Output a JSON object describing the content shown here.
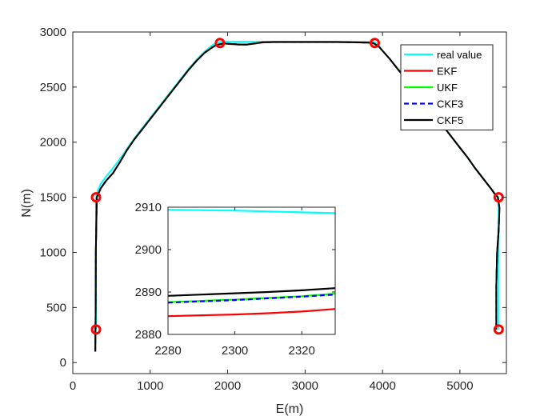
{
  "chart_data": {
    "type": "line",
    "xlabel": "E(m)",
    "ylabel": "N(m)",
    "xlim": [
      0,
      5600
    ],
    "ylim": [
      -100,
      3000
    ],
    "xticks": [
      0,
      1000,
      2000,
      3000,
      4000,
      5000
    ],
    "yticks": [
      0,
      500,
      1000,
      1500,
      2000,
      2500,
      3000
    ],
    "grid": false,
    "legend_position": "top-right",
    "series": [
      {
        "name": "real value",
        "color": "#00FFFF",
        "x": [
          300,
          300,
          300,
          320,
          360,
          420,
          500,
          600,
          700,
          800,
          900,
          1000,
          1100,
          1200,
          1300,
          1400,
          1500,
          1600,
          1700,
          1800,
          1850,
          1900,
          2000,
          2200,
          2400,
          2600,
          2800,
          3000,
          3200,
          3400,
          3600,
          3800,
          3900,
          3950,
          4000,
          4100,
          4200,
          4300,
          4400,
          4500,
          4600,
          4700,
          4800,
          4900,
          5000,
          5100,
          5200,
          5300,
          5400,
          5450,
          5480,
          5500,
          5500,
          5500
        ],
        "y": [
          300,
          1000,
          1500,
          1560,
          1620,
          1680,
          1750,
          1840,
          1940,
          2040,
          2130,
          2220,
          2310,
          2400,
          2490,
          2580,
          2670,
          2750,
          2820,
          2880,
          2900,
          2910,
          2912,
          2912,
          2911,
          2911,
          2911,
          2911,
          2911,
          2911,
          2910,
          2910,
          2908,
          2880,
          2830,
          2750,
          2660,
          2580,
          2490,
          2400,
          2310,
          2220,
          2130,
          2040,
          1950,
          1860,
          1760,
          1670,
          1580,
          1530,
          1500,
          1450,
          900,
          300
        ]
      },
      {
        "name": "EKF",
        "color": "#FF0000",
        "x": [
          290,
          295,
          298,
          310,
          360,
          430,
          520,
          610,
          700,
          800,
          900,
          1000,
          1100,
          1200,
          1300,
          1400,
          1500,
          1600,
          1700,
          1800,
          1850,
          1880,
          1950,
          2050,
          2150,
          2250,
          2350,
          2450,
          2600,
          2800,
          3000,
          3200,
          3400,
          3600,
          3800,
          3880,
          3950,
          4000,
          4100,
          4200,
          4300,
          4400,
          4500,
          4600,
          4700,
          4800,
          4900,
          5000,
          5100,
          5200,
          5300,
          5400,
          5450,
          5490,
          5510,
          5500,
          5480,
          5470,
          5470
        ],
        "y": [
          100,
          500,
          1000,
          1500,
          1580,
          1650,
          1720,
          1820,
          1930,
          2030,
          2120,
          2210,
          2300,
          2390,
          2480,
          2570,
          2660,
          2740,
          2810,
          2860,
          2880,
          2885,
          2895,
          2890,
          2885,
          2885,
          2895,
          2905,
          2908,
          2908,
          2908,
          2908,
          2908,
          2906,
          2903,
          2898,
          2870,
          2830,
          2750,
          2660,
          2580,
          2490,
          2400,
          2310,
          2220,
          2130,
          2040,
          1950,
          1860,
          1760,
          1670,
          1580,
          1530,
          1500,
          1400,
          1200,
          1000,
          700,
          300
        ]
      },
      {
        "name": "UKF",
        "color": "#00FF00",
        "x": [
          290,
          295,
          298,
          310,
          360,
          430,
          520,
          610,
          700,
          800,
          900,
          1000,
          1100,
          1200,
          1300,
          1400,
          1500,
          1600,
          1700,
          1800,
          1850,
          1880,
          1950,
          2050,
          2150,
          2250,
          2350,
          2450,
          2600,
          2800,
          3000,
          3200,
          3400,
          3600,
          3800,
          3880,
          3950,
          4000,
          4100,
          4200,
          4300,
          4400,
          4500,
          4600,
          4700,
          4800,
          4900,
          5000,
          5100,
          5200,
          5300,
          5400,
          5450,
          5490,
          5510,
          5500,
          5480,
          5470,
          5470
        ],
        "y": [
          100,
          500,
          1000,
          1500,
          1580,
          1650,
          1720,
          1820,
          1930,
          2030,
          2120,
          2210,
          2300,
          2390,
          2480,
          2570,
          2660,
          2740,
          2810,
          2860,
          2880,
          2886,
          2896,
          2891,
          2886,
          2886,
          2896,
          2906,
          2909,
          2909,
          2909,
          2909,
          2909,
          2907,
          2904,
          2899,
          2870,
          2830,
          2750,
          2660,
          2580,
          2490,
          2400,
          2310,
          2220,
          2130,
          2040,
          1950,
          1860,
          1760,
          1670,
          1580,
          1530,
          1500,
          1400,
          1200,
          1000,
          700,
          300
        ]
      },
      {
        "name": "CKF3",
        "color": "#0000FF",
        "dash": true,
        "x": [
          290,
          295,
          298,
          310,
          360,
          430,
          520,
          610,
          700,
          800,
          900,
          1000,
          1100,
          1200,
          1300,
          1400,
          1500,
          1600,
          1700,
          1800,
          1850,
          1880,
          1950,
          2050,
          2150,
          2250,
          2350,
          2450,
          2600,
          2800,
          3000,
          3200,
          3400,
          3600,
          3800,
          3880,
          3950,
          4000,
          4100,
          4200,
          4300,
          4400,
          4500,
          4600,
          4700,
          4800,
          4900,
          5000,
          5100,
          5200,
          5300,
          5400,
          5450,
          5490,
          5510,
          5500,
          5480,
          5470,
          5470
        ],
        "y": [
          100,
          500,
          1000,
          1500,
          1580,
          1650,
          1720,
          1820,
          1930,
          2030,
          2120,
          2210,
          2300,
          2390,
          2480,
          2570,
          2660,
          2740,
          2810,
          2860,
          2880,
          2886,
          2896,
          2891,
          2886,
          2886,
          2896,
          2906,
          2909,
          2909,
          2909,
          2909,
          2909,
          2907,
          2904,
          2899,
          2870,
          2830,
          2750,
          2660,
          2580,
          2490,
          2400,
          2310,
          2220,
          2130,
          2040,
          1950,
          1860,
          1760,
          1670,
          1580,
          1530,
          1500,
          1400,
          1200,
          1000,
          700,
          300
        ]
      },
      {
        "name": "CKF5",
        "color": "#000000",
        "x": [
          290,
          295,
          298,
          310,
          360,
          430,
          520,
          610,
          700,
          800,
          900,
          1000,
          1100,
          1200,
          1300,
          1400,
          1500,
          1600,
          1700,
          1800,
          1850,
          1880,
          1950,
          2050,
          2150,
          2250,
          2350,
          2450,
          2600,
          2800,
          3000,
          3200,
          3400,
          3600,
          3800,
          3880,
          3950,
          4000,
          4100,
          4200,
          4300,
          4400,
          4500,
          4600,
          4700,
          4800,
          4900,
          5000,
          5100,
          5200,
          5300,
          5400,
          5450,
          5490,
          5510,
          5500,
          5480,
          5470,
          5470
        ],
        "y": [
          100,
          500,
          1000,
          1500,
          1580,
          1650,
          1720,
          1820,
          1930,
          2030,
          2120,
          2210,
          2300,
          2390,
          2480,
          2570,
          2660,
          2740,
          2810,
          2860,
          2880,
          2887,
          2897,
          2892,
          2887,
          2887,
          2897,
          2907,
          2910,
          2910,
          2910,
          2910,
          2910,
          2908,
          2905,
          2900,
          2870,
          2830,
          2750,
          2660,
          2580,
          2490,
          2400,
          2310,
          2220,
          2130,
          2040,
          1950,
          1860,
          1760,
          1670,
          1580,
          1530,
          1500,
          1400,
          1200,
          1000,
          700,
          300
        ]
      }
    ],
    "markers": {
      "color": "#FF0000",
      "points": [
        {
          "x": 300,
          "y": 300
        },
        {
          "x": 300,
          "y": 1500
        },
        {
          "x": 1900,
          "y": 2900
        },
        {
          "x": 3900,
          "y": 2900
        },
        {
          "x": 5500,
          "y": 1500
        },
        {
          "x": 5500,
          "y": 300
        }
      ]
    },
    "inset": {
      "xlim": [
        2280,
        2330
      ],
      "ylim": [
        2880,
        2910
      ],
      "xticks": [
        2280,
        2300,
        2320
      ],
      "yticks": [
        2880,
        2890,
        2900,
        2910
      ],
      "series": [
        {
          "name": "real value",
          "color": "#00FFFF",
          "x": [
            2280,
            2290,
            2300,
            2310,
            2320,
            2330
          ],
          "y": [
            2909.4,
            2909.3,
            2909.2,
            2909.0,
            2908.8,
            2908.6
          ]
        },
        {
          "name": "EKF",
          "color": "#FF0000",
          "x": [
            2280,
            2290,
            2300,
            2310,
            2320,
            2330
          ],
          "y": [
            2884.3,
            2884.5,
            2884.7,
            2885.0,
            2885.4,
            2886.0
          ]
        },
        {
          "name": "UKF",
          "color": "#00FF00",
          "x": [
            2280,
            2290,
            2300,
            2310,
            2320,
            2330
          ],
          "y": [
            2887.6,
            2887.9,
            2888.2,
            2888.6,
            2889.0,
            2889.6
          ]
        },
        {
          "name": "CKF3",
          "color": "#0000FF",
          "dash": true,
          "x": [
            2280,
            2290,
            2300,
            2310,
            2320,
            2330
          ],
          "y": [
            2887.5,
            2887.8,
            2888.1,
            2888.5,
            2888.9,
            2889.4
          ]
        },
        {
          "name": "CKF5",
          "color": "#000000",
          "x": [
            2280,
            2290,
            2300,
            2310,
            2320,
            2330
          ],
          "y": [
            2889.1,
            2889.4,
            2889.7,
            2890.0,
            2890.4,
            2890.9
          ]
        }
      ]
    }
  }
}
